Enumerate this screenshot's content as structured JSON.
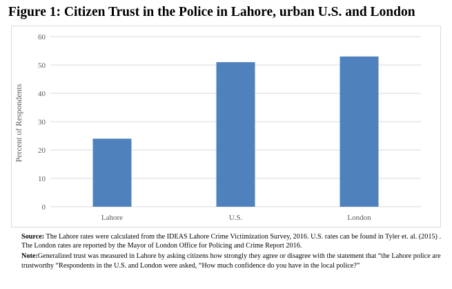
{
  "title": "Figure 1: Citizen Trust in the Police in Lahore, urban U.S. and London",
  "chart_data": {
    "type": "bar",
    "categories": [
      "Lahore",
      "U.S.",
      "London"
    ],
    "values": [
      24,
      51,
      53
    ],
    "title": "",
    "xlabel": "",
    "ylabel": "Percent of Respondents",
    "ylim": [
      0,
      60
    ],
    "yticks": [
      0,
      10,
      20,
      30,
      40,
      50,
      60
    ],
    "grid": true,
    "bar_color": "#4f81bd",
    "grid_color": "#d9d9d9"
  },
  "notes": {
    "source_label": "Source:",
    "source_text": " The Lahore rates were calculated from the IDEAS Lahore Crime Victimization Survey, 2016. U.S. rates can be found in Tyler et. al. (2015) . The London rates are reported by the Mayor of London Office for Policing and Crime Report 2016.",
    "note_label": "Note:",
    "note_text": "Generalized trust was measured in Lahore by asking citizens how strongly they agree or disagree with the statement that “the Lahore police are trustworthy “Respondents in the U.S. and London were asked, “How much confidence do you have in the local police?”"
  }
}
